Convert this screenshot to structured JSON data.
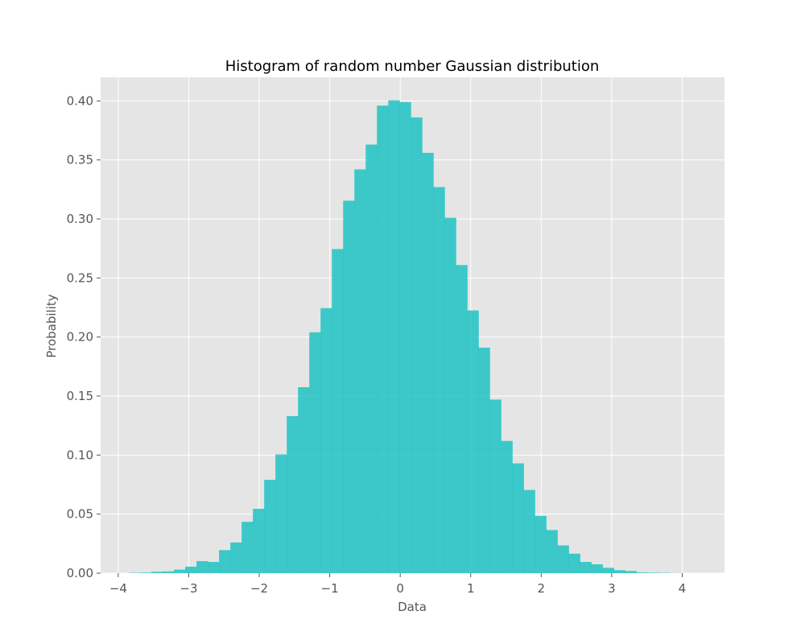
{
  "chart_data": {
    "type": "bar",
    "title": "Histogram of random number Gaussian distribution",
    "xlabel": "Data",
    "ylabel": "Probability",
    "xlim": [
      -4.25,
      4.6
    ],
    "ylim": [
      0,
      0.42
    ],
    "grid": true,
    "colors": {
      "bar": "#1fc3c3",
      "plot_background": "#e5e5e5",
      "grid": "#ffffff",
      "tick_labels": "#555555"
    },
    "xticks": [
      {
        "value": -4,
        "label": "−4"
      },
      {
        "value": -3,
        "label": "−3"
      },
      {
        "value": -2,
        "label": "−2"
      },
      {
        "value": -1,
        "label": "−1"
      },
      {
        "value": 0,
        "label": "0"
      },
      {
        "value": 1,
        "label": "1"
      },
      {
        "value": 2,
        "label": "2"
      },
      {
        "value": 3,
        "label": "3"
      },
      {
        "value": 4,
        "label": "4"
      }
    ],
    "yticks": [
      {
        "value": 0.0,
        "label": "0.00"
      },
      {
        "value": 0.05,
        "label": "0.05"
      },
      {
        "value": 0.1,
        "label": "0.10"
      },
      {
        "value": 0.15,
        "label": "0.15"
      },
      {
        "value": 0.2,
        "label": "0.20"
      },
      {
        "value": 0.25,
        "label": "0.25"
      },
      {
        "value": 0.3,
        "label": "0.30"
      },
      {
        "value": 0.35,
        "label": "0.35"
      },
      {
        "value": 0.4,
        "label": "0.40"
      }
    ],
    "bin_edges": [
      -3.85,
      -3.69,
      -3.53,
      -3.37,
      -3.21,
      -3.05,
      -2.89,
      -2.73,
      -2.57,
      -2.41,
      -2.25,
      -2.09,
      -1.93,
      -1.77,
      -1.61,
      -1.45,
      -1.29,
      -1.13,
      -0.97,
      -0.81,
      -0.65,
      -0.49,
      -0.33,
      -0.17,
      -0.01,
      0.15,
      0.31,
      0.47,
      0.63,
      0.79,
      0.95,
      1.11,
      1.27,
      1.43,
      1.59,
      1.75,
      1.91,
      2.07,
      2.23,
      2.39,
      2.55,
      2.71,
      2.87,
      3.03,
      3.19,
      3.35,
      3.51,
      3.67,
      3.83,
      3.99
    ],
    "values": [
      0.0003,
      0.0005,
      0.0012,
      0.0015,
      0.003,
      0.0055,
      0.0102,
      0.0095,
      0.0195,
      0.026,
      0.0435,
      0.0545,
      0.079,
      0.1005,
      0.133,
      0.1575,
      0.204,
      0.2245,
      0.2745,
      0.3155,
      0.342,
      0.363,
      0.396,
      0.4005,
      0.399,
      0.386,
      0.356,
      0.327,
      0.301,
      0.261,
      0.2225,
      0.191,
      0.147,
      0.112,
      0.093,
      0.0705,
      0.0485,
      0.0365,
      0.0235,
      0.0165,
      0.0095,
      0.0075,
      0.0045,
      0.0025,
      0.0018,
      0.0006,
      0.0004,
      0.0003,
      0.0001
    ]
  }
}
